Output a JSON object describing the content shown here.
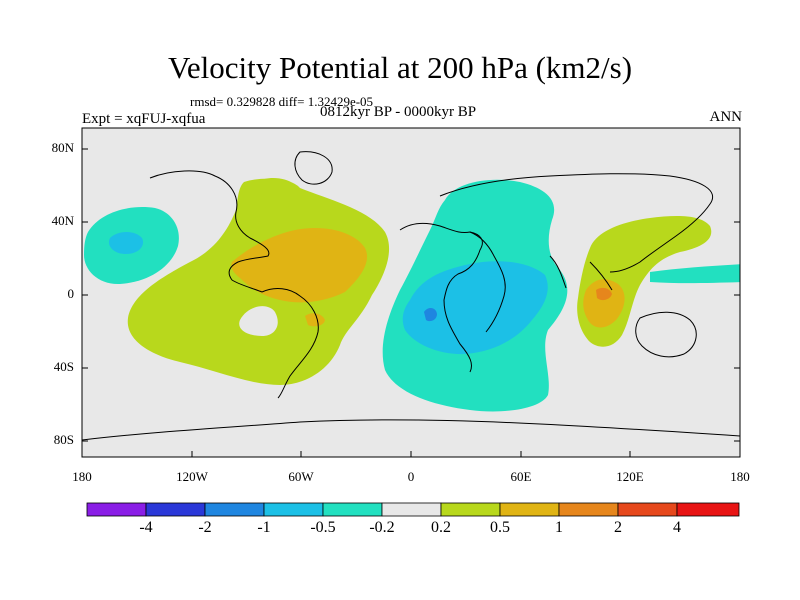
{
  "header": {
    "title": "Velocity Potential at 200 hPa (km2/s)",
    "stats": "rmsd= 0.329828 diff= 1.32429e-05",
    "experiment": "Expt = xqFUJ-xqfua",
    "period": "0812kyr BP - 0000kyr BP",
    "season": "ANN"
  },
  "axes": {
    "lat_ticks": [
      "80N",
      "40N",
      "0",
      "40S",
      "80S"
    ],
    "lon_ticks": [
      "180",
      "120W",
      "60W",
      "0",
      "60E",
      "120E",
      "180"
    ]
  },
  "colorbar": {
    "labels": [
      "-4",
      "-2",
      "-1",
      "-0.5",
      "-0.2",
      "0.2",
      "0.5",
      "1",
      "2",
      "4"
    ],
    "colors": [
      "#8a1ee6",
      "#2a38d8",
      "#1f86e0",
      "#1cc0e6",
      "#22e0c0",
      "#e8e8e8",
      "#b8d81c",
      "#e0b414",
      "#e6861c",
      "#e6481c",
      "#e81414"
    ]
  },
  "field_colors": {
    "ocean_background": "#e8e8e8",
    "pos_0_2": "#b8d81c",
    "pos_0_5": "#e0b414",
    "pos_1": "#e6861c",
    "neg_0_2": "#22e0c0",
    "neg_0_5": "#1cc0e6",
    "neg_1": "#1f86e0"
  }
}
